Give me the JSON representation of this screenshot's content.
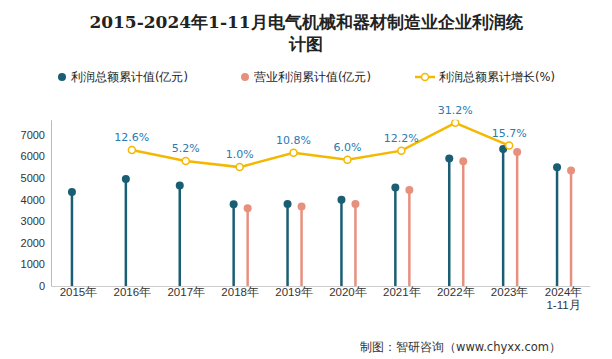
{
  "chart_data": {
    "type": "bar",
    "title": "2015-2024年1-11月电气机械和器材制造业企业利润统\n计图",
    "source": "制图：智研咨询（www.chyxx.com）",
    "categories": [
      "2015年",
      "2016年",
      "2017年",
      "2018年",
      "2019年",
      "2020年",
      "2021年",
      "2022年",
      "2023年",
      "2024年\n1-11月"
    ],
    "legend": "top",
    "ylim": [
      0,
      7700
    ],
    "yticks": [
      0,
      1000,
      2000,
      3000,
      4000,
      5000,
      6000,
      7000
    ],
    "y2lim": [
      -80,
      33.3
    ],
    "series": [
      {
        "name": "利润总额累计值(亿元)",
        "type": "bar",
        "marker": "circle",
        "color": "#1a5e73",
        "values": [
          4350,
          4950,
          4650,
          3780,
          3800,
          3990,
          4560,
          5900,
          6340,
          5500
        ]
      },
      {
        "name": "营业利润累计值(亿元)",
        "type": "bar",
        "marker": "circle",
        "color": "#e8907e",
        "values": [
          null,
          null,
          null,
          3600,
          3680,
          3800,
          4450,
          5780,
          6200,
          5350
        ]
      },
      {
        "name": "利润总额累计增长(%)",
        "type": "line",
        "axis": "y2",
        "marker": "circle",
        "color": "#f5b800",
        "data_labels": true,
        "values": [
          null,
          12.6,
          5.2,
          1.0,
          10.8,
          6.0,
          12.2,
          31.2,
          15.7,
          null
        ],
        "value_labels": [
          null,
          "12.6%",
          "5.2%",
          "1.0%",
          "10.8%",
          "6.0%",
          "12.2%",
          "31.2%",
          "15.7%",
          null
        ]
      }
    ]
  }
}
